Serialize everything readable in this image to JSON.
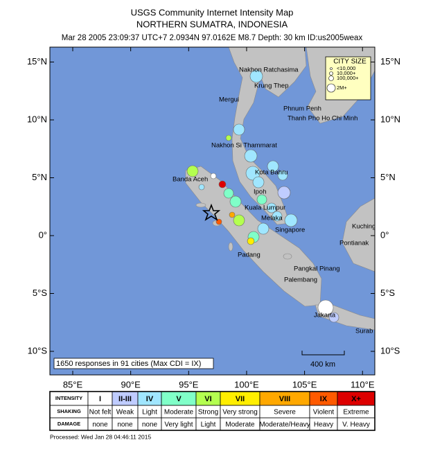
{
  "header": {
    "title": "USGS Community Internet Intensity Map",
    "subtitle": "NORTHERN SUMATRA, INDONESIA",
    "event": "Mar 28 2005 23:09:37 UTC+7 2.0934N 97.0162E M8.7 Depth: 30 km ID:us2005weax"
  },
  "map": {
    "lat_ticks": [
      {
        "value": 15,
        "label": "15°N"
      },
      {
        "value": 10,
        "label": "10°N"
      },
      {
        "value": 5,
        "label": "5°N"
      },
      {
        "value": 0,
        "label": "0°"
      },
      {
        "value": -5,
        "label": "5°S"
      },
      {
        "value": -10,
        "label": "10°S"
      }
    ],
    "lon_ticks": [
      {
        "value": 85,
        "label": "85°E"
      },
      {
        "value": 90,
        "label": "90°E"
      },
      {
        "value": 95,
        "label": "95°E"
      },
      {
        "value": 100,
        "label": "100°E"
      },
      {
        "value": 105,
        "label": "105°E"
      },
      {
        "value": 110,
        "label": "110°E"
      }
    ],
    "cities": [
      "Nakhon Ratchasima",
      "Krung Thep",
      "Mergui",
      "Phnum Penh",
      "Thanh Pho Ho Chi Minh",
      "Nakhon Si Thammarat",
      "Kota Bahru",
      "Banda Aceh",
      "Ipoh",
      "Kuala Lumpur",
      "Melaka",
      "Singapore",
      "Kuching",
      "Pontianak",
      "Padang",
      "Pangkal Pinang",
      "Palembang",
      "Jakarta",
      "Surab"
    ],
    "city_size": {
      "title": "CITY SIZE",
      "sizes": [
        "<10,000",
        "10,000+",
        "100,000+",
        "2M+"
      ]
    },
    "summary": "1650 responses in 91 cities (Max CDI = IX)",
    "scale_bar": "400 km"
  },
  "legend": {
    "row_labels": [
      "INTENSITY",
      "SHAKING",
      "DAMAGE"
    ],
    "intensity": [
      "I",
      "II-III",
      "IV",
      "V",
      "VI",
      "VII",
      "VIII",
      "IX",
      "X+"
    ],
    "shaking": [
      "Not felt",
      "Weak",
      "Light",
      "Moderate",
      "Strong",
      "Very strong",
      "Severe",
      "Violent",
      "Extreme"
    ],
    "damage": [
      "none",
      "none",
      "none",
      "Very light",
      "Light",
      "Moderate",
      "Moderate/Heavy",
      "Heavy",
      "V. Heavy"
    ],
    "colors": [
      "#ffffff",
      "#bfccff",
      "#a0e6ff",
      "#80ffc8",
      "#b4ff50",
      "#ffee00",
      "#ffa800",
      "#ff5a00",
      "#dd0000"
    ]
  },
  "footer": "Processed: Wed Jan 28 04:46:11 2015"
}
